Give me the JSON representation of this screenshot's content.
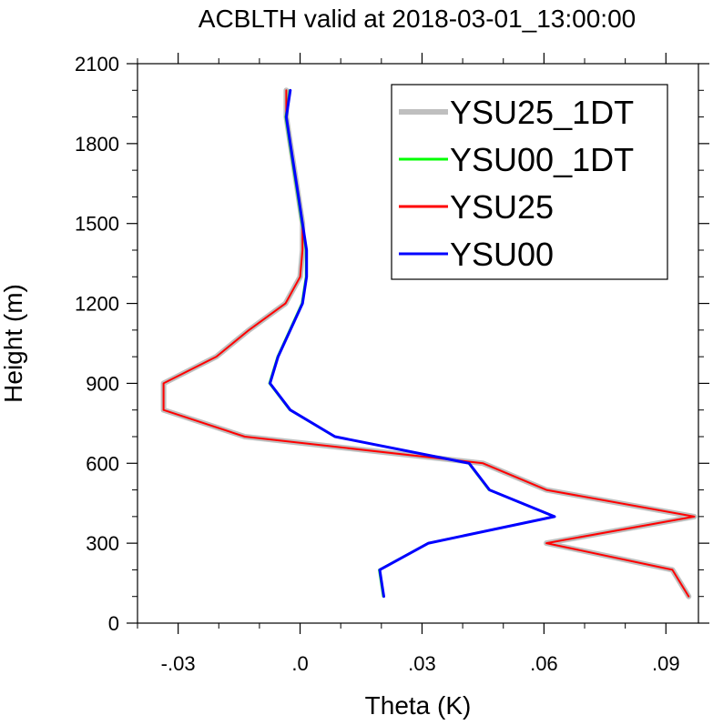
{
  "chart_data": {
    "type": "line",
    "title": "ACBLTH valid at 2018-03-01_13:00:00",
    "xlabel": "Theta (K)",
    "ylabel": "Height (m)",
    "xlim": [
      -0.04,
      0.098
    ],
    "ylim": [
      0,
      2100
    ],
    "x_ticks": [
      -0.03,
      0.0,
      0.03,
      0.06,
      0.09
    ],
    "x_tick_labels": [
      "-.03",
      ".0",
      ".03",
      ".06",
      ".09"
    ],
    "y_ticks": [
      0,
      300,
      600,
      900,
      1200,
      1500,
      1800,
      2100
    ],
    "y_tick_labels": [
      "0",
      "300",
      "600",
      "900",
      "1200",
      "1500",
      "1800",
      "2100"
    ],
    "legend_position": "top-right",
    "grid": false,
    "heights": [
      100,
      200,
      300,
      400,
      500,
      600,
      700,
      800,
      900,
      1000,
      1100,
      1200,
      1300,
      1400,
      1500,
      1600,
      1700,
      1800,
      1900,
      2000
    ],
    "series": [
      {
        "name": "YSU25_1DT",
        "color": "#bfbfbf",
        "width": 6,
        "values": [
          0.0956,
          0.0916,
          0.0606,
          0.097,
          0.0606,
          0.045,
          -0.0136,
          -0.0336,
          -0.0336,
          -0.0206,
          -0.0126,
          -0.0036,
          0.0,
          0.0006,
          0.0006,
          -0.0004,
          -0.0014,
          -0.0024,
          -0.0034,
          -0.0034
        ]
      },
      {
        "name": "YSU00_1DT",
        "color": "#00ff00",
        "width": 2,
        "values": [
          0.0204,
          0.0194,
          0.0314,
          0.0624,
          0.0464,
          0.0414,
          0.0084,
          -0.0026,
          -0.0076,
          -0.0056,
          -0.0026,
          0.0004,
          0.0014,
          0.0014,
          0.0004,
          -0.0006,
          -0.0016,
          -0.0026,
          -0.0036,
          -0.0026
        ]
      },
      {
        "name": "YSU25",
        "color": "#ff0000",
        "width": 2,
        "values": [
          0.0956,
          0.0916,
          0.0606,
          0.097,
          0.0606,
          0.045,
          -0.0136,
          -0.0336,
          -0.0336,
          -0.0206,
          -0.0126,
          -0.0036,
          0.0,
          0.0006,
          0.0006,
          -0.0004,
          -0.0014,
          -0.0024,
          -0.0034,
          -0.0034
        ]
      },
      {
        "name": "YSU00",
        "color": "#0000ff",
        "width": 3,
        "values": [
          0.0206,
          0.0196,
          0.0316,
          0.0626,
          0.0466,
          0.0416,
          0.0086,
          -0.0024,
          -0.0074,
          -0.0054,
          -0.0024,
          0.0006,
          0.0016,
          0.0016,
          0.0006,
          -0.0004,
          -0.0014,
          -0.0024,
          -0.0034,
          -0.0024
        ]
      }
    ]
  }
}
